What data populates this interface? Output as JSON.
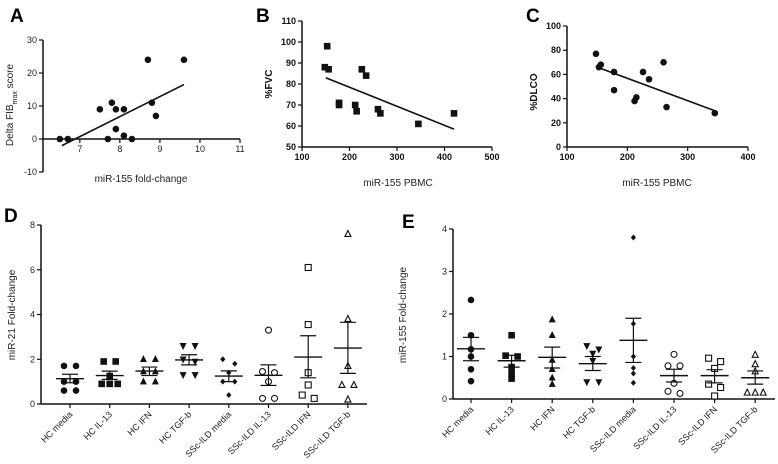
{
  "chart_data": [
    {
      "panel": "A",
      "type": "scatter",
      "xlabel": "miR-155 fold-change",
      "ylabel": "Delta FIB",
      "ylabel_sub": "max",
      "ylabel_suffix": " score",
      "xlim": [
        6.08,
        11
      ],
      "ylim": [
        -10,
        30
      ],
      "xticks": [
        7,
        8,
        9,
        10,
        11
      ],
      "yticks": [
        -10,
        0,
        10,
        20,
        30
      ],
      "marker": "circle",
      "filled": true,
      "x": [
        6.5,
        6.7,
        7.5,
        7.7,
        7.8,
        7.9,
        7.9,
        8.1,
        8.1,
        8.3,
        8.7,
        8.8,
        8.9,
        9.6
      ],
      "y": [
        0,
        0,
        9,
        0,
        11,
        9,
        3,
        9,
        1,
        0,
        24,
        11,
        7,
        24
      ],
      "fit": [
        [
          6.55,
          -2
        ],
        [
          9.6,
          16.5
        ]
      ]
    },
    {
      "panel": "B",
      "type": "scatter",
      "xlabel": "miR-155 PBMC",
      "ylabel": "%FVC",
      "xlim": [
        100,
        500
      ],
      "ylim": [
        50,
        110
      ],
      "xticks": [
        100,
        200,
        300,
        400,
        500
      ],
      "yticks": [
        50,
        60,
        70,
        80,
        90,
        100,
        110
      ],
      "marker": "square",
      "filled": true,
      "x": [
        148,
        153,
        156,
        178,
        178,
        212,
        215,
        226,
        235,
        260,
        265,
        345,
        420
      ],
      "y": [
        88,
        98,
        87,
        71,
        70,
        70,
        67,
        87,
        84,
        68,
        66,
        61,
        66
      ],
      "fit": [
        [
          150,
          83
        ],
        [
          420,
          58.5
        ]
      ]
    },
    {
      "panel": "C",
      "type": "scatter",
      "xlabel": "miR-155 PBMC",
      "ylabel": "%DLCO",
      "xlim": [
        100,
        400
      ],
      "ylim": [
        0,
        100
      ],
      "xticks": [
        100,
        200,
        300,
        400
      ],
      "yticks": [
        0,
        20,
        40,
        60,
        80,
        100
      ],
      "marker": "circle",
      "filled": true,
      "x": [
        148,
        153,
        156,
        178,
        178,
        212,
        215,
        226,
        236,
        260,
        265,
        345
      ],
      "y": [
        77,
        66,
        68,
        62,
        47,
        38,
        41,
        62,
        56,
        70,
        33,
        28
      ],
      "fit": [
        [
          150,
          66
        ],
        [
          345,
          30
        ]
      ]
    },
    {
      "panel": "D",
      "type": "scatter",
      "ylabel": "miR-21 Fold-change",
      "xlabel": "",
      "ylim": [
        0,
        8
      ],
      "yticks": [
        0,
        2,
        4,
        6,
        8
      ],
      "categories": [
        "HC media",
        "HC IL-13",
        "HC IFN",
        "HC TGF-b",
        "SSc-ILD media",
        "SSc-ILD IL-13",
        "SSc-ILD IFN",
        "SSc-ILD TGF-b"
      ],
      "series": [
        {
          "name": "HC media",
          "marker": "circle",
          "filled": true,
          "values": [
            1.7,
            1.7,
            1.0,
            1.0,
            0.6,
            0.6
          ],
          "mean": 1.13,
          "sem_hi": 1.33,
          "sem_lo": 0.95
        },
        {
          "name": "HC IL-13",
          "marker": "square",
          "filled": true,
          "values": [
            1.9,
            1.9,
            1.25,
            0.9,
            0.9,
            0.9
          ],
          "mean": 1.27,
          "sem_hi": 1.47,
          "sem_lo": 1.1
        },
        {
          "name": "HC IFN",
          "marker": "triangle",
          "filled": true,
          "values": [
            2.0,
            2.0,
            1.45,
            1.45,
            1.0,
            1.0
          ],
          "mean": 1.47,
          "sem_hi": 1.65,
          "sem_lo": 1.27
        },
        {
          "name": "HC TGF-b",
          "marker": "triangle-down",
          "filled": true,
          "values": [
            2.6,
            2.6,
            2.0,
            1.9,
            1.3,
            1.3
          ],
          "mean": 1.97,
          "sem_hi": 2.2,
          "sem_lo": 1.75
        },
        {
          "name": "SSc-ILD media",
          "marker": "diamond",
          "filled": true,
          "values": [
            2.0,
            1.8,
            1.4,
            1.0,
            1.0,
            0.4
          ],
          "mean": 1.25,
          "sem_hi": 1.48,
          "sem_lo": 1.0
        },
        {
          "name": "SSc-ILD IL-13",
          "marker": "circle",
          "filled": false,
          "values": [
            3.3,
            1.45,
            1.4,
            1.0,
            0.25,
            0.25
          ],
          "mean": 1.28,
          "sem_hi": 1.75,
          "sem_lo": 0.83
        },
        {
          "name": "SSc-ILD IFN",
          "marker": "square",
          "filled": false,
          "values": [
            6.1,
            3.55,
            1.4,
            0.85,
            0.4,
            0.25
          ],
          "mean": 2.1,
          "sem_hi": 3.05,
          "sem_lo": 1.17
        },
        {
          "name": "SSc-ILD TGF-b",
          "marker": "triangle",
          "filled": false,
          "values": [
            7.6,
            3.8,
            1.7,
            0.85,
            0.85,
            0.2
          ],
          "mean": 2.5,
          "sem_hi": 3.65,
          "sem_lo": 1.37
        }
      ]
    },
    {
      "panel": "E",
      "type": "scatter",
      "ylabel": "miR-155 Fold-change",
      "xlabel": "",
      "ylim": [
        0,
        4
      ],
      "yticks": [
        0,
        1,
        2,
        3,
        4
      ],
      "categories": [
        "HC media",
        "HC IL-13",
        "HC IFN",
        "HC TGF-b",
        "SSc-ILD media",
        "SSc-ILD IL-13",
        "SSc-ILD IFN",
        "SSc-ILD TGF-b"
      ],
      "series": [
        {
          "name": "HC media",
          "marker": "circle",
          "filled": true,
          "values": [
            2.33,
            1.5,
            1.17,
            1.0,
            0.7,
            0.42
          ],
          "mean": 1.18,
          "sem_hi": 1.45,
          "sem_lo": 0.9
        },
        {
          "name": "HC IL-13",
          "marker": "square",
          "filled": true,
          "values": [
            1.5,
            1.02,
            1.0,
            0.75,
            0.6,
            0.48
          ],
          "mean": 0.9,
          "sem_hi": 1.03,
          "sem_lo": 0.75
        },
        {
          "name": "HC IFN",
          "marker": "triangle",
          "filled": true,
          "values": [
            1.87,
            1.5,
            0.92,
            0.7,
            0.5,
            0.35
          ],
          "mean": 0.98,
          "sem_hi": 1.22,
          "sem_lo": 0.73
        },
        {
          "name": "HC TGF-b",
          "marker": "triangle-down",
          "filled": true,
          "values": [
            1.25,
            1.17,
            1.07,
            0.9,
            0.4,
            0.4
          ],
          "mean": 0.83,
          "sem_hi": 1.0,
          "sem_lo": 0.67
        },
        {
          "name": "SSc-ILD media",
          "marker": "diamond",
          "filled": true,
          "values": [
            3.8,
            1.77,
            1.0,
            0.73,
            0.6,
            0.38
          ],
          "mean": 1.38,
          "sem_hi": 1.9,
          "sem_lo": 0.86
        },
        {
          "name": "SSc-ILD IL-13",
          "marker": "circle",
          "filled": false,
          "values": [
            1.05,
            0.78,
            0.78,
            0.37,
            0.18,
            0.13
          ],
          "mean": 0.55,
          "sem_hi": 0.7,
          "sem_lo": 0.4
        },
        {
          "name": "SSc-ILD IFN",
          "marker": "square",
          "filled": false,
          "values": [
            0.96,
            0.88,
            0.72,
            0.35,
            0.27,
            0.07
          ],
          "mean": 0.55,
          "sem_hi": 0.69,
          "sem_lo": 0.38
        },
        {
          "name": "SSc-ILD TGF-b",
          "marker": "triangle",
          "filled": false,
          "values": [
            1.04,
            0.82,
            0.65,
            0.15,
            0.15,
            0.15
          ],
          "mean": 0.5,
          "sem_hi": 0.66,
          "sem_lo": 0.35
        }
      ]
    }
  ]
}
